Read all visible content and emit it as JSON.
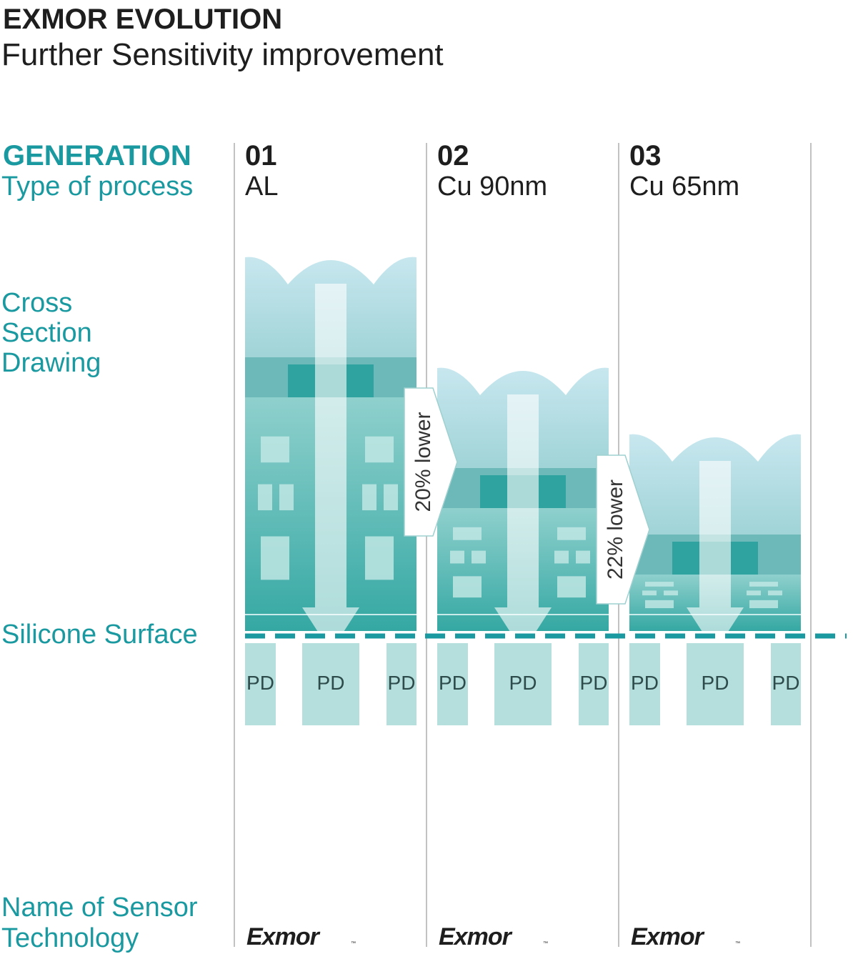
{
  "header": {
    "title": "EXMOR EVOLUTION",
    "subtitle": "Further Sensitivity improvement"
  },
  "row_labels": {
    "generation": "GENERATION",
    "process": "Type of process",
    "cross_section": [
      "Cross",
      "Section",
      "Drawing"
    ],
    "surface": "Silicone Surface",
    "sensor_name": [
      "Name of Sensor",
      "Technology"
    ]
  },
  "columns": [
    {
      "generation": "01",
      "process": "AL",
      "pd_labels": [
        "PD",
        "PD",
        "PD"
      ],
      "logo": "Exmor",
      "logo_mark": "™"
    },
    {
      "generation": "02",
      "process": "Cu 90nm",
      "pd_labels": [
        "PD",
        "PD",
        "PD"
      ],
      "logo": "Exmor",
      "logo_mark": "™"
    },
    {
      "generation": "03",
      "process": "Cu 65nm",
      "pd_labels": [
        "PD",
        "PD",
        "PD"
      ],
      "logo": "Exmor",
      "logo_mark": "™"
    }
  ],
  "callouts": [
    "20% lower",
    "22% lower"
  ]
}
